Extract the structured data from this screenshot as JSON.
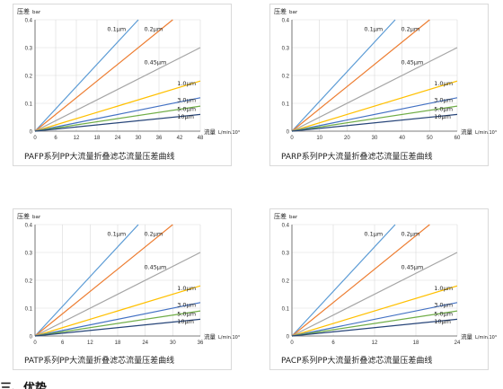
{
  "colors": {
    "0.1μm": "#5b9bd5",
    "0.2μm": "#ed7d31",
    "0.45μm": "#a5a5a5",
    "1.0μm": "#ffc000",
    "3.0μm": "#4472c4",
    "5.0μm": "#70ad47",
    "10μm": "#264478"
  },
  "chart_data": [
    {
      "type": "line",
      "caption": "PAFP系列PP大流量折叠滤芯流量压差曲线",
      "ylabel": "压差",
      "yunit": "bar",
      "xlabel": "流量",
      "xunit": "L/min.10³",
      "xlim": [
        0,
        48
      ],
      "ylim": [
        0,
        0.4
      ],
      "xticks": [
        "0",
        "6",
        "12",
        "18",
        "24",
        "30",
        "36",
        "42",
        "48"
      ],
      "yticks": [
        "0",
        "0.1",
        "0.2",
        "0.3",
        "0.4"
      ],
      "series": [
        {
          "name": "0.1μm",
          "x": [
            0,
            30
          ],
          "y": [
            0,
            0.4
          ]
        },
        {
          "name": "0.2μm",
          "x": [
            0,
            40
          ],
          "y": [
            0,
            0.4
          ]
        },
        {
          "name": "0.45μm",
          "x": [
            0,
            48
          ],
          "y": [
            0,
            0.3
          ]
        },
        {
          "name": "1.0μm",
          "x": [
            0,
            48
          ],
          "y": [
            0,
            0.18
          ]
        },
        {
          "name": "3.0μm",
          "x": [
            0,
            48
          ],
          "y": [
            0,
            0.12
          ]
        },
        {
          "name": "5.0μm",
          "x": [
            0,
            48
          ],
          "y": [
            0,
            0.09
          ]
        },
        {
          "name": "10μm",
          "x": [
            0,
            48
          ],
          "y": [
            0,
            0.06
          ]
        }
      ]
    },
    {
      "type": "line",
      "caption": "PARP系列PP大流量折叠滤芯流量压差曲线",
      "ylabel": "压差",
      "yunit": "bar",
      "xlabel": "流量",
      "xunit": "L/min.10³",
      "xlim": [
        0,
        60
      ],
      "ylim": [
        0,
        0.4
      ],
      "xticks": [
        "0",
        "10",
        "20",
        "30",
        "40",
        "50",
        "60"
      ],
      "yticks": [
        "0",
        "0.1",
        "0.2",
        "0.3",
        "0.4"
      ],
      "series": [
        {
          "name": "0.1μm",
          "x": [
            0,
            37.5
          ],
          "y": [
            0,
            0.4
          ]
        },
        {
          "name": "0.2μm",
          "x": [
            0,
            50
          ],
          "y": [
            0,
            0.4
          ]
        },
        {
          "name": "0.45μm",
          "x": [
            0,
            60
          ],
          "y": [
            0,
            0.3
          ]
        },
        {
          "name": "1.0μm",
          "x": [
            0,
            60
          ],
          "y": [
            0,
            0.18
          ]
        },
        {
          "name": "3.0μm",
          "x": [
            0,
            60
          ],
          "y": [
            0,
            0.12
          ]
        },
        {
          "name": "5.0μm",
          "x": [
            0,
            60
          ],
          "y": [
            0,
            0.09
          ]
        },
        {
          "name": "10μm",
          "x": [
            0,
            60
          ],
          "y": [
            0,
            0.06
          ]
        }
      ]
    },
    {
      "type": "line",
      "caption": "PATP系列PP大流量折叠滤芯流量压差曲线",
      "ylabel": "压差",
      "yunit": "bar",
      "xlabel": "流量",
      "xunit": "L/min.10³",
      "xlim": [
        0,
        36
      ],
      "ylim": [
        0,
        0.4
      ],
      "xticks": [
        "0",
        "6",
        "12",
        "18",
        "24",
        "30",
        "36"
      ],
      "yticks": [
        "0",
        "0.1",
        "0.2",
        "0.3",
        "0.4"
      ],
      "series": [
        {
          "name": "0.1μm",
          "x": [
            0,
            22.5
          ],
          "y": [
            0,
            0.4
          ]
        },
        {
          "name": "0.2μm",
          "x": [
            0,
            30
          ],
          "y": [
            0,
            0.4
          ]
        },
        {
          "name": "0.45μm",
          "x": [
            0,
            36
          ],
          "y": [
            0,
            0.3
          ]
        },
        {
          "name": "1.0μm",
          "x": [
            0,
            36
          ],
          "y": [
            0,
            0.18
          ]
        },
        {
          "name": "3.0μm",
          "x": [
            0,
            36
          ],
          "y": [
            0,
            0.12
          ]
        },
        {
          "name": "5.0μm",
          "x": [
            0,
            36
          ],
          "y": [
            0,
            0.09
          ]
        },
        {
          "name": "10μm",
          "x": [
            0,
            36
          ],
          "y": [
            0,
            0.06
          ]
        }
      ]
    },
    {
      "type": "line",
      "caption": "PACP系列PP大流量折叠滤芯流量压差曲线",
      "ylabel": "压差",
      "yunit": "bar",
      "xlabel": "流量",
      "xunit": "L/min.10³",
      "xlim": [
        0,
        24
      ],
      "ylim": [
        0,
        0.4
      ],
      "xticks": [
        "0",
        "6",
        "12",
        "18",
        "24"
      ],
      "yticks": [
        "0",
        "0.1",
        "0.2",
        "0.3",
        "0.4"
      ],
      "series": [
        {
          "name": "0.1μm",
          "x": [
            0,
            15
          ],
          "y": [
            0,
            0.4
          ]
        },
        {
          "name": "0.2μm",
          "x": [
            0,
            20
          ],
          "y": [
            0,
            0.4
          ]
        },
        {
          "name": "0.45μm",
          "x": [
            0,
            24
          ],
          "y": [
            0,
            0.3
          ]
        },
        {
          "name": "1.0μm",
          "x": [
            0,
            24
          ],
          "y": [
            0,
            0.18
          ]
        },
        {
          "name": "3.0μm",
          "x": [
            0,
            24
          ],
          "y": [
            0,
            0.12
          ]
        },
        {
          "name": "5.0μm",
          "x": [
            0,
            24
          ],
          "y": [
            0,
            0.09
          ]
        },
        {
          "name": "10μm",
          "x": [
            0,
            24
          ],
          "y": [
            0,
            0.06
          ]
        }
      ]
    }
  ],
  "footer": {
    "cropped_text": "三、优势"
  }
}
